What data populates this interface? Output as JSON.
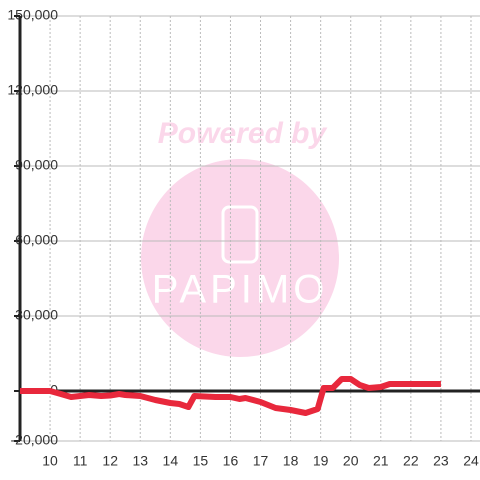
{
  "chart_data": {
    "type": "line",
    "annotations": [
      "Powered by",
      "PAPIMO"
    ],
    "x": [
      9,
      9.5,
      10,
      10.3,
      10.7,
      11,
      11.3,
      11.7,
      12,
      12.3,
      12.5,
      13,
      13.5,
      14,
      14.3,
      14.6,
      14.8,
      15.5,
      16,
      16.3,
      16.5,
      17,
      17.5,
      18,
      18.5,
      18.9,
      19.1,
      19.4,
      19.7,
      20,
      20.3,
      20.6,
      21,
      21.3,
      22,
      23
    ],
    "series": [
      {
        "color": "#e8283c",
        "values": [
          0,
          0,
          0,
          -1000,
          -2400,
          -2000,
          -1600,
          -2000,
          -1800,
          -1200,
          -1600,
          -2000,
          -3600,
          -4800,
          -5200,
          -6400,
          -2000,
          -2400,
          -2400,
          -3200,
          -2800,
          -4400,
          -6800,
          -7600,
          -8800,
          -7200,
          1200,
          1200,
          4800,
          4800,
          2400,
          1200,
          1600,
          2800,
          2800,
          2800
        ]
      }
    ],
    "xlim": [
      9,
      24.3
    ],
    "xticks": [
      10,
      11,
      12,
      13,
      14,
      15,
      16,
      17,
      18,
      19,
      20,
      21,
      22,
      23,
      24
    ],
    "ylim": [
      -20000,
      150000
    ],
    "yticks": [
      {
        "value": -20000,
        "label": "-20,000"
      },
      0,
      {
        "value": 30000,
        "label": "30,000"
      },
      {
        "value": 60000,
        "label": "60,000"
      },
      {
        "value": 90000,
        "label": "90,000"
      },
      {
        "value": 120000,
        "label": "120,000"
      },
      {
        "value": 150000,
        "label": "150,000"
      }
    ],
    "grid": true
  }
}
